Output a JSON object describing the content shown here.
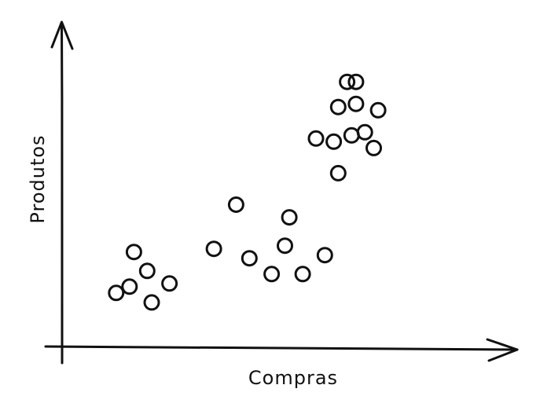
{
  "chart_data": {
    "type": "scatter",
    "title": "",
    "xlabel": "Compras",
    "ylabel": "Produtos",
    "grid": false,
    "legend": "none",
    "xlim": [
      0,
      100
    ],
    "ylim": [
      0,
      100
    ],
    "series": [
      {
        "points": [
          {
            "x": 12,
            "y": 17
          },
          {
            "x": 15,
            "y": 19
          },
          {
            "x": 16,
            "y": 30
          },
          {
            "x": 19,
            "y": 24
          },
          {
            "x": 20,
            "y": 14
          },
          {
            "x": 24,
            "y": 20
          },
          {
            "x": 34,
            "y": 31
          },
          {
            "x": 39,
            "y": 45
          },
          {
            "x": 42,
            "y": 28
          },
          {
            "x": 47,
            "y": 23
          },
          {
            "x": 50,
            "y": 32
          },
          {
            "x": 51,
            "y": 41
          },
          {
            "x": 54,
            "y": 23
          },
          {
            "x": 59,
            "y": 29
          },
          {
            "x": 57,
            "y": 66
          },
          {
            "x": 61,
            "y": 65
          },
          {
            "x": 62,
            "y": 55
          },
          {
            "x": 62,
            "y": 76
          },
          {
            "x": 64,
            "y": 84
          },
          {
            "x": 65,
            "y": 67
          },
          {
            "x": 66,
            "y": 77
          },
          {
            "x": 66,
            "y": 84
          },
          {
            "x": 68,
            "y": 68
          },
          {
            "x": 70,
            "y": 63
          },
          {
            "x": 71,
            "y": 75
          }
        ]
      }
    ]
  },
  "style": {
    "ink": "#111111",
    "background": "#ffffff"
  }
}
